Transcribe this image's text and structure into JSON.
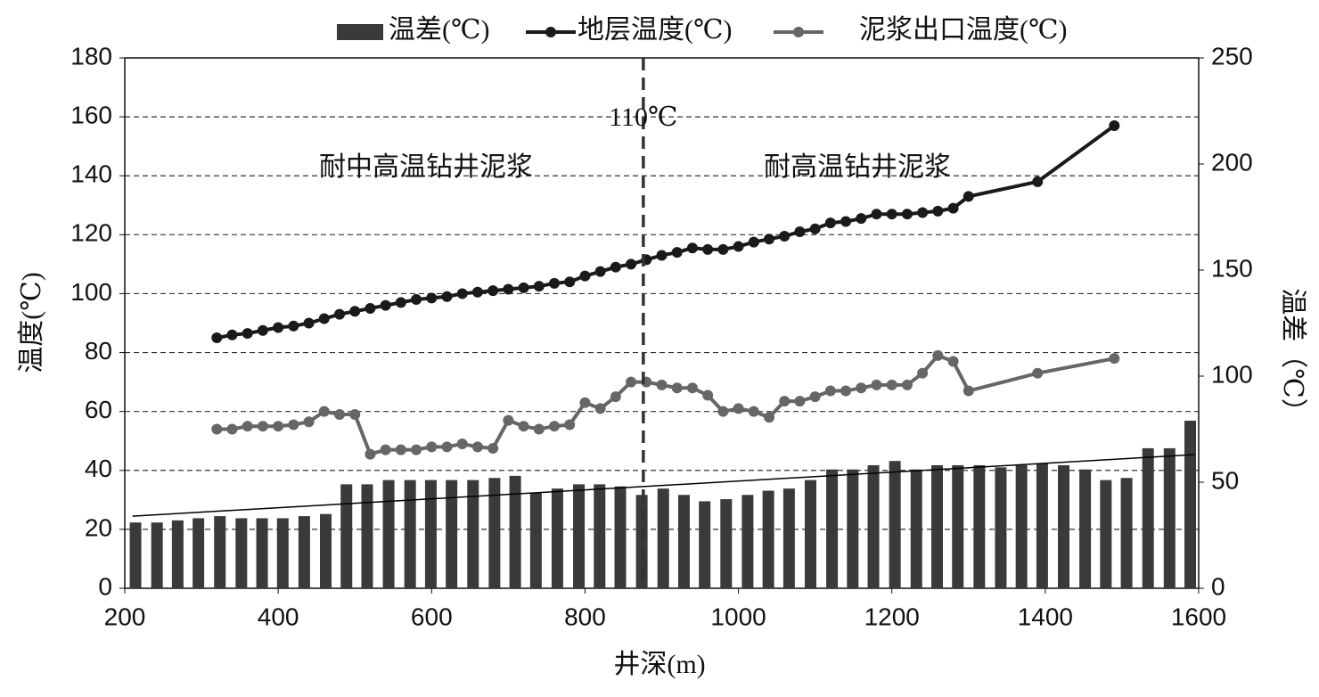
{
  "chart_data": {
    "type": "bar_line",
    "xlabel": "井深(m)",
    "ylabel": "温度(℃)",
    "y2label": "温差（℃）",
    "xlim": [
      200,
      1600
    ],
    "xticks": [
      200,
      400,
      600,
      800,
      1000,
      1200,
      1400,
      1600
    ],
    "ylim": [
      0,
      180
    ],
    "yticks": [
      0,
      20,
      40,
      60,
      80,
      100,
      120,
      140,
      160,
      180
    ],
    "y2lim": [
      0,
      250
    ],
    "y2ticks": [
      0,
      50,
      100,
      150,
      200,
      250
    ],
    "grid": true,
    "legend": "top",
    "series": [
      {
        "name": "温差(℃)",
        "kind": "bar",
        "axis": "y2",
        "color": "#3a3a3a",
        "x": [
          214,
          242,
          269,
          296,
          324,
          352,
          379,
          406,
          434,
          462,
          489,
          516,
          544,
          572,
          599,
          626,
          654,
          682,
          709,
          736,
          764,
          792,
          819,
          846,
          874,
          902,
          929,
          956,
          984,
          1012,
          1039,
          1066,
          1094,
          1122,
          1149,
          1176,
          1204,
          1232,
          1259,
          1286,
          1314,
          1342,
          1369,
          1396,
          1424,
          1452,
          1479,
          1506,
          1534,
          1562,
          1589
        ],
        "values": [
          31,
          31,
          32,
          33,
          34,
          33,
          33,
          33,
          34,
          35,
          49,
          49,
          51,
          51,
          51,
          51,
          51,
          52,
          53,
          45,
          47,
          49,
          49,
          48,
          44,
          47,
          44,
          41,
          42,
          44,
          46,
          47,
          51,
          56,
          56,
          58,
          60,
          56,
          58,
          58,
          58,
          57,
          58,
          59,
          58,
          56,
          51,
          52,
          66,
          66,
          79
        ]
      },
      {
        "name": "地层温度(℃)",
        "kind": "line",
        "axis": "y",
        "color": "#1a1a1a",
        "x": [
          320,
          340,
          360,
          380,
          400,
          420,
          440,
          460,
          480,
          500,
          520,
          540,
          560,
          580,
          600,
          620,
          640,
          660,
          680,
          700,
          720,
          740,
          760,
          780,
          800,
          820,
          840,
          860,
          880,
          900,
          920,
          940,
          960,
          980,
          1000,
          1020,
          1040,
          1060,
          1080,
          1100,
          1120,
          1140,
          1160,
          1180,
          1200,
          1220,
          1240,
          1260,
          1280,
          1300,
          1390,
          1490
        ],
        "values": [
          85,
          86,
          86.5,
          87.5,
          88.5,
          89,
          90,
          91.5,
          93,
          94,
          95,
          96,
          97,
          98,
          98.5,
          99,
          100,
          100.5,
          101,
          101.5,
          102,
          102.5,
          103.5,
          104,
          106,
          107.5,
          109,
          110,
          111.5,
          113,
          114,
          115.5,
          115,
          115,
          116,
          117.5,
          118.5,
          119.5,
          121,
          122,
          124,
          124.5,
          125.5,
          127,
          127,
          127,
          127.5,
          128,
          129,
          133,
          138,
          157
        ]
      },
      {
        "name": "泥浆出口温度(℃)",
        "kind": "line",
        "axis": "y",
        "color": "#666666",
        "x": [
          320,
          340,
          360,
          380,
          400,
          420,
          440,
          460,
          480,
          500,
          520,
          540,
          560,
          580,
          600,
          620,
          640,
          660,
          680,
          700,
          720,
          740,
          760,
          780,
          800,
          820,
          840,
          860,
          880,
          900,
          920,
          940,
          960,
          980,
          1000,
          1020,
          1040,
          1060,
          1080,
          1100,
          1120,
          1140,
          1160,
          1180,
          1200,
          1220,
          1240,
          1260,
          1280,
          1300,
          1390,
          1490
        ],
        "values": [
          54,
          54,
          55,
          55,
          55,
          55.5,
          56.5,
          60,
          59,
          59,
          45.5,
          47,
          47,
          47,
          48,
          48,
          49,
          48,
          47.5,
          57,
          55,
          54,
          55,
          55.5,
          63,
          61,
          65,
          70,
          70,
          69,
          68,
          68,
          65.5,
          60,
          61,
          60,
          58,
          63.5,
          63.5,
          65,
          67,
          67,
          68,
          69,
          69,
          69,
          73,
          79,
          77,
          67,
          73,
          78
        ]
      }
    ],
    "trendline": {
      "axis": "y2",
      "color": "#000000",
      "x": [
        210,
        1595
      ],
      "values": [
        34,
        63
      ]
    },
    "reference_line": {
      "x": 876,
      "label": "110℃"
    },
    "annotations": [
      "耐中高温钻井泥浆",
      "耐高温钻井泥浆"
    ]
  }
}
